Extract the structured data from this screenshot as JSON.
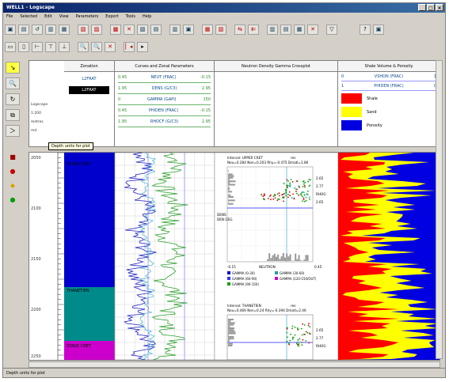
{
  "window": {
    "title": "WELL1 - Logscape",
    "controls": [
      "_",
      "□",
      "×"
    ]
  },
  "menu": [
    "File",
    "Selected",
    "Edit",
    "View",
    "Parameters",
    "Export",
    "Tools",
    "Help"
  ],
  "toolbar1": [
    "▣",
    "▤",
    "↺",
    "▥",
    "▦",
    "▧",
    "▨",
    "▩",
    "✕",
    "▧",
    "▤",
    "▥",
    "▣",
    "▦",
    "▧",
    "⇆",
    "⇇",
    "▥",
    "▤",
    "▦",
    "✕",
    "▽",
    "?",
    "▣"
  ],
  "toolbar2": [
    "▭",
    "▯",
    "⊢",
    "⊤",
    "⊥",
    "🔍",
    "🔍",
    "✕",
    "▏◂",
    "▸"
  ],
  "leftbar": [
    "↘",
    "🔍",
    "↻",
    "⧉",
    "＞"
  ],
  "leftbar2": [
    "■",
    "●",
    "◆",
    "●"
  ],
  "tooltip": "Depth units for plot",
  "status": "Depth units for plot",
  "header": {
    "zonation_label": "Zonation",
    "curves_label": "Curves and Zonal Parameters",
    "ndg_label": "Neutron Density Gamma Crossplot",
    "shale_label": "Shale Volume & Porosity",
    "zones": [
      "L2FRAT",
      "L2FRAT"
    ],
    "curves": [
      {
        "min": "0.45",
        "name": "NEUT (FRAC)",
        "max": "-0.15"
      },
      {
        "min": "1.95",
        "name": "DENS (G/C3)",
        "max": "2.95"
      },
      {
        "min": "0",
        "name": "GAMMA (GAPI)",
        "max": "150"
      },
      {
        "min": "0.45",
        "name": "PHIDEN (FRAC)",
        "max": "-0.15"
      },
      {
        "min": "1.95",
        "name": "RHOCF (G/C3)",
        "max": "2.95"
      }
    ],
    "shale_curve": {
      "min": "0",
      "name": "VSHDN (FRAC)",
      "max": "1"
    },
    "phi_curve": {
      "min": "1",
      "name": "PHIDEN (FRAC)",
      "max": "0"
    },
    "legend": [
      {
        "name": "Shale",
        "color": "#ff0000"
      },
      {
        "name": "Sand",
        "color": "#ffff00"
      },
      {
        "name": "Porosity",
        "color": "#0000e0"
      }
    ],
    "notes": [
      "Logscape",
      "1:200",
      "metres",
      "md"
    ]
  },
  "depths": [
    "2050",
    "2100",
    "2150",
    "2200",
    "2250"
  ],
  "zone_labels": [
    "UPPER CRET",
    "THANETIEN",
    "STAGE CRET"
  ],
  "xplot1": {
    "title": "Interval: UPPER CRET",
    "stats": "Neu=0.284  Nen=0.203  Rhy=-0.475  Dmatl=1.86",
    "note": "res",
    "xmin": "-0.15",
    "xmax": "0.45",
    "xlabel": "NEUTRON",
    "ylabel": "DEN DEG",
    "tags": [
      "2.65",
      "2.77",
      "RHOG",
      "2.65"
    ],
    "ylabel2": "DENS",
    "legend": [
      "GAMMA (0-30)",
      "GAMMA (30-60)",
      "GAMMA (60-90)",
      "GAMMA (90-150)",
      "GAMMA (120-150/OUT)"
    ]
  },
  "xplot2": {
    "title": "Interval: THANETIEN",
    "stats": "Neu=0.466  Nen=0.24  Rhy=-0.394  Dmatl=2.46",
    "note": "res",
    "tags": [
      "2.65",
      "2.77",
      "RHOG"
    ]
  }
}
